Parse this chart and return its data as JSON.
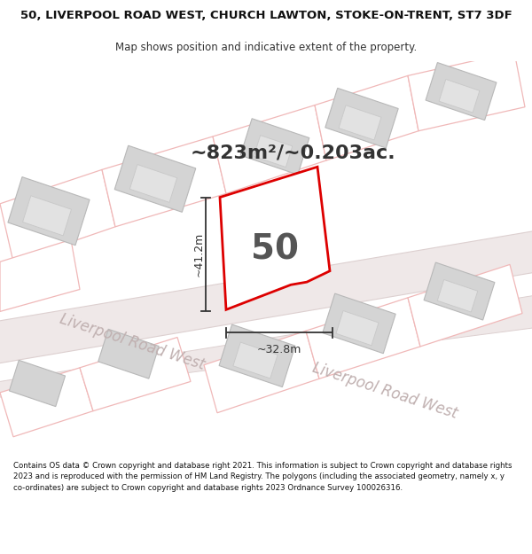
{
  "title_line1": "50, LIVERPOOL ROAD WEST, CHURCH LAWTON, STOKE-ON-TRENT, ST7 3DF",
  "title_line2": "Map shows position and indicative extent of the property.",
  "area_label": "~823m²/~0.203ac.",
  "house_number": "50",
  "dim_vertical": "~41.2m",
  "dim_horizontal": "~32.8m",
  "road_label_left": "Liverpool Road West",
  "road_label_right": "Liverpool Road West",
  "footer_text": "Contains OS data © Crown copyright and database right 2021. This information is subject to Crown copyright and database rights 2023 and is reproduced with the permission of HM Land Registry. The polygons (including the associated geometry, namely x, y co-ordinates) are subject to Crown copyright and database rights 2023 Ordnance Survey 100026316.",
  "bg_color": "#ffffff",
  "map_bg_color": "#fdf8f8",
  "road_fill": "#efe8e8",
  "road_edge_color": "#ddd0d0",
  "parcel_fill": "#ffffff",
  "parcel_edge": "#f0b8b8",
  "building_fill": "#d8d8d8",
  "building_edge": "#c0c0c0",
  "property_fill": "#ffffff",
  "property_edge": "#dd0000",
  "property_lw": 2.0,
  "dim_color": "#333333",
  "road_text_color": "#c0b0b0",
  "title_fontsize": 9.5,
  "subtitle_fontsize": 8.5,
  "area_fontsize": 16,
  "house_num_fontsize": 28,
  "dim_fontsize": 9,
  "road_fontsize": 12,
  "footer_fontsize": 6.2
}
